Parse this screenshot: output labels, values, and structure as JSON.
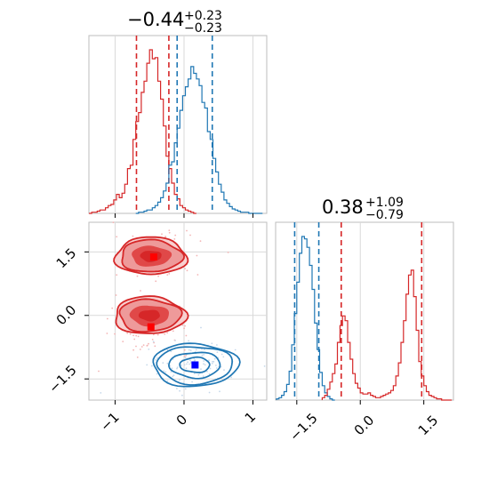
{
  "chart_data": [
    {
      "type": "histogram",
      "panel": "top-left",
      "title": {
        "value": "−0.44",
        "plus": "+0.23",
        "minus": "−0.23"
      },
      "xlim": [
        -1.38,
        1.2
      ],
      "grid": true,
      "series": [
        {
          "color": "#d62728",
          "quantile_lines": [
            -0.69,
            -0.22
          ],
          "bins": [
            -1.38,
            -1.34,
            -1.3,
            -1.26,
            -1.22,
            -1.18,
            -1.14,
            -1.1,
            -1.06,
            -1.02,
            -0.98,
            -0.94,
            -0.9,
            -0.86,
            -0.82,
            -0.78,
            -0.74,
            -0.7,
            -0.66,
            -0.62,
            -0.58,
            -0.54,
            -0.5,
            -0.46,
            -0.42,
            -0.38,
            -0.34,
            -0.3,
            -0.26,
            -0.22,
            -0.18,
            -0.14,
            -0.1,
            -0.06,
            -0.02,
            0.02,
            0.06,
            0.1,
            0.14,
            0.18
          ],
          "counts": [
            0,
            1,
            1,
            2,
            3,
            3,
            5,
            7,
            8,
            12,
            17,
            14,
            18,
            26,
            40,
            43,
            66,
            82,
            90,
            108,
            118,
            134,
            146,
            138,
            139,
            118,
            102,
            78,
            51,
            40,
            27,
            17,
            13,
            7,
            5,
            3,
            2,
            1,
            0
          ]
        },
        {
          "color": "#1f77b4",
          "quantile_lines": [
            -0.1,
            0.41
          ],
          "bins": [
            -0.7,
            -0.66,
            -0.62,
            -0.58,
            -0.54,
            -0.5,
            -0.46,
            -0.42,
            -0.38,
            -0.34,
            -0.3,
            -0.26,
            -0.22,
            -0.18,
            -0.14,
            -0.1,
            -0.06,
            -0.02,
            0.02,
            0.06,
            0.1,
            0.14,
            0.18,
            0.22,
            0.26,
            0.3,
            0.34,
            0.38,
            0.42,
            0.46,
            0.5,
            0.54,
            0.58,
            0.62,
            0.66,
            0.7,
            0.74,
            0.78,
            0.82,
            0.86,
            0.9,
            0.94,
            0.98,
            1.02,
            1.06,
            1.1,
            1.14
          ],
          "counts": [
            0,
            1,
            1,
            2,
            3,
            3,
            5,
            7,
            10,
            14,
            20,
            27,
            43,
            46,
            63,
            76,
            92,
            105,
            113,
            120,
            131,
            125,
            120,
            114,
            99,
            94,
            73,
            66,
            49,
            37,
            26,
            19,
            12,
            9,
            6,
            4,
            3,
            2,
            1,
            1,
            1,
            0,
            0,
            0,
            0,
            0
          ]
        }
      ]
    },
    {
      "type": "contour",
      "panel": "bottom-left",
      "xlim": [
        -1.38,
        1.2
      ],
      "ylim": [
        -2.0,
        2.2
      ],
      "xticks": [
        "−1",
        "0",
        "1"
      ],
      "yticks": [
        "1.5",
        "0.0",
        "−1.5"
      ],
      "grid": true,
      "series": [
        {
          "color": "#d62728",
          "centers": [
            {
              "x": -0.48,
              "y": 1.4
            },
            {
              "x": -0.5,
              "y": 0.0
            }
          ],
          "markers": [
            {
              "x": -0.44,
              "y": 1.38
            },
            {
              "x": -0.48,
              "y": -0.27
            }
          ]
        },
        {
          "color": "#1f77b4",
          "centers": [
            {
              "x": 0.16,
              "y": -1.17
            }
          ],
          "markers": [
            {
              "x": 0.16,
              "y": -1.17
            }
          ]
        }
      ]
    },
    {
      "type": "histogram",
      "panel": "bottom-right",
      "title": {
        "value": "0.38",
        "plus": "+1.09",
        "minus": "−0.79"
      },
      "xlim": [
        -2.0,
        2.2
      ],
      "xticks": [
        "−1.5",
        "0.0",
        "1.5"
      ],
      "grid": true,
      "series": [
        {
          "color": "#1f77b4",
          "quantile_lines": [
            -1.55,
            -0.98
          ],
          "bins": [
            -1.98,
            -1.92,
            -1.86,
            -1.8,
            -1.74,
            -1.68,
            -1.62,
            -1.56,
            -1.5,
            -1.44,
            -1.38,
            -1.32,
            -1.26,
            -1.2,
            -1.14,
            -1.08,
            -1.02,
            -0.96,
            -0.9,
            -0.84,
            -0.78,
            -0.72,
            -0.66,
            -0.6
          ],
          "counts": [
            1,
            2,
            4,
            7,
            13,
            24,
            46,
            72,
            98,
            122,
            136,
            134,
            127,
            112,
            92,
            64,
            42,
            23,
            12,
            6,
            3,
            1,
            0
          ]
        },
        {
          "color": "#d62728",
          "quantile_lines": [
            -0.45,
            1.45
          ],
          "bins": [
            -0.9,
            -0.84,
            -0.78,
            -0.72,
            -0.66,
            -0.6,
            -0.54,
            -0.48,
            -0.42,
            -0.36,
            -0.3,
            -0.24,
            -0.18,
            -0.12,
            -0.06,
            0.0,
            0.06,
            0.12,
            0.18,
            0.24,
            0.3,
            0.36,
            0.42,
            0.48,
            0.54,
            0.6,
            0.66,
            0.72,
            0.78,
            0.84,
            0.9,
            0.96,
            1.02,
            1.08,
            1.14,
            1.2,
            1.26,
            1.32,
            1.38,
            1.44,
            1.5,
            1.56,
            1.62,
            1.68,
            1.74,
            1.8,
            1.86,
            1.92,
            1.98,
            2.04,
            2.1,
            2.16
          ],
          "counts": [
            2,
            4,
            9,
            15,
            22,
            30,
            48,
            62,
            70,
            66,
            48,
            34,
            22,
            14,
            10,
            6,
            5,
            5,
            6,
            4,
            3,
            2,
            2,
            3,
            4,
            5,
            6,
            8,
            12,
            20,
            31,
            48,
            66,
            88,
            104,
            108,
            86,
            58,
            32,
            20,
            12,
            7,
            4,
            3,
            2,
            1,
            1,
            0,
            0,
            0,
            0
          ]
        }
      ]
    }
  ]
}
